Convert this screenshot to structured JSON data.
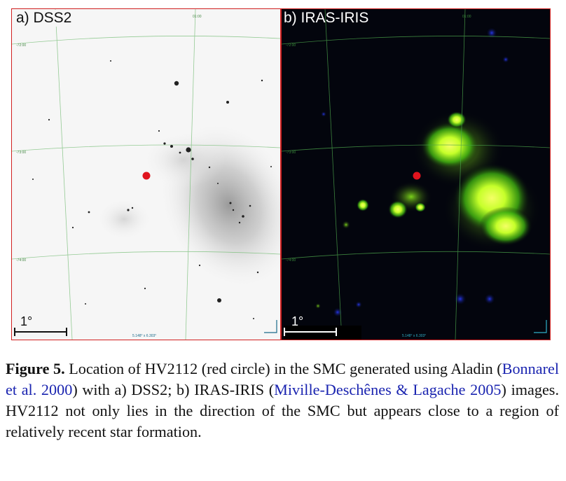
{
  "figure": {
    "panel_a": {
      "label": "a) DSS2",
      "scale_label": "1°",
      "bottom_readout": "5.148° x 6.303°"
    },
    "panel_b": {
      "label": "b) IRAS-IRIS",
      "scale_label": "1°",
      "bottom_readout": "5.148° x 6.303°"
    },
    "marker_color": "#e0141e",
    "panel_border_color": "#d02020"
  },
  "caption": {
    "lead": "Figure 5.",
    "text_1": " Location of HV2112 (red circle) in the SMC generated using Aladin (",
    "cite_1": "Bonnarel et al. 2000",
    "text_2": ") with a) DSS2; b) IRAS-IRIS (",
    "cite_2": "Miville-Deschênes & Lagache 2005",
    "text_3": ") images. HV2112 not only lies in the direction of the SMC but appears close to a region of relatively recent star formation."
  }
}
